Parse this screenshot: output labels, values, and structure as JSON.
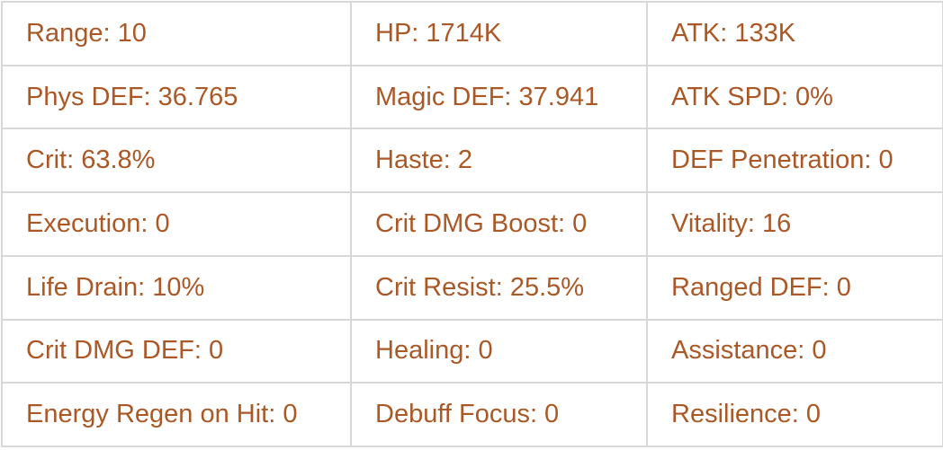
{
  "theme": {
    "text": "#ab5827",
    "border": "#d8d8d8",
    "bg": "#ffffff"
  },
  "stats_table": {
    "rows": [
      {
        "cells": [
          "Range: 10",
          "HP: 1714K",
          "ATK: 133K"
        ]
      },
      {
        "cells": [
          "Phys DEF: 36.765",
          "Magic DEF: 37.941",
          "ATK SPD: 0%"
        ]
      },
      {
        "cells": [
          "Crit: 63.8%",
          "Haste: 2",
          "DEF Penetration: 0"
        ]
      },
      {
        "cells": [
          "Execution: 0",
          "Crit DMG Boost: 0",
          "Vitality: 16"
        ]
      },
      {
        "cells": [
          "Life Drain: 10%",
          "Crit Resist: 25.5%",
          "Ranged DEF: 0"
        ]
      },
      {
        "cells": [
          "Crit DMG DEF: 0",
          "Healing: 0",
          "Assistance: 0"
        ]
      },
      {
        "cells": [
          "Energy Regen on Hit: 0",
          "Debuff Focus: 0",
          "Resilience: 0"
        ]
      }
    ]
  }
}
